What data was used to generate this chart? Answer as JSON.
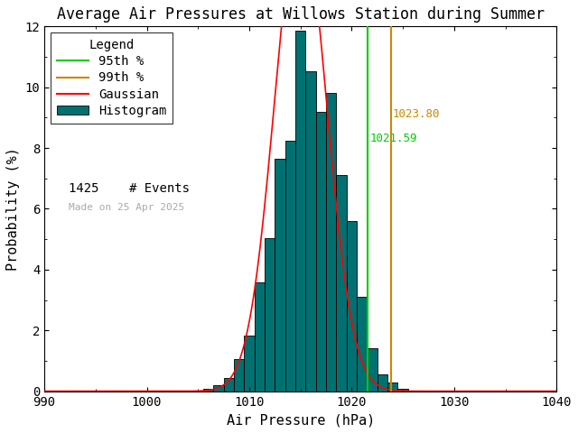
{
  "title": "Average Air Pressures at Willows Station during Summer",
  "xlabel": "Air Pressure (hPa)",
  "ylabel": "Probability (%)",
  "xlim": [
    990,
    1040
  ],
  "ylim": [
    0,
    12
  ],
  "xticks": [
    990,
    1000,
    1010,
    1020,
    1030,
    1040
  ],
  "yticks": [
    0,
    2,
    4,
    6,
    8,
    10,
    12
  ],
  "hist_color": "#007070",
  "hist_edgecolor": "#000000",
  "gaussian_color": "red",
  "p95_color": "#00cc00",
  "p99_color": "#cc8800",
  "p95_value": 1021.59,
  "p99_value": 1023.8,
  "n_events": 1425,
  "date_label": "Made on 25 Apr 2025",
  "gauss_mean": 1015.0,
  "gauss_std": 2.55,
  "bin_width": 1.0,
  "bin_data": [
    [
      1006.0,
      0.07
    ],
    [
      1007.0,
      0.21
    ],
    [
      1008.0,
      0.42
    ],
    [
      1009.0,
      1.05
    ],
    [
      1010.0,
      1.82
    ],
    [
      1011.0,
      3.58
    ],
    [
      1012.0,
      5.04
    ],
    [
      1013.0,
      7.65
    ],
    [
      1014.0,
      8.25
    ],
    [
      1015.0,
      11.86
    ],
    [
      1016.0,
      10.53
    ],
    [
      1017.0,
      9.19
    ],
    [
      1018.0,
      9.82
    ],
    [
      1019.0,
      7.12
    ],
    [
      1020.0,
      5.6
    ],
    [
      1021.0,
      3.1
    ],
    [
      1022.0,
      1.4
    ],
    [
      1023.0,
      0.56
    ],
    [
      1024.0,
      0.28
    ],
    [
      1025.0,
      0.07
    ]
  ],
  "background_color": "white",
  "title_fontsize": 12,
  "axis_fontsize": 11,
  "tick_fontsize": 10,
  "legend_fontsize": 10,
  "annot_fontsize": 9
}
